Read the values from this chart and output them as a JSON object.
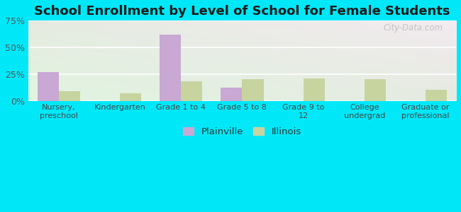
{
  "title": "School Enrollment by Level of School for Female Students",
  "categories": [
    "Nursery,\npreschool",
    "Kindergarten",
    "Grade 1 to 4",
    "Grade 5 to 8",
    "Grade 9 to\n12",
    "College\nundergrad",
    "Graduate or\nprofessional"
  ],
  "plainville": [
    27,
    0,
    62,
    12,
    0,
    0,
    0
  ],
  "illinois": [
    9,
    7,
    18,
    20,
    21,
    20,
    10
  ],
  "plainville_color": "#c9a8d4",
  "illinois_color": "#c8d4a0",
  "background_outer": "#00e8f8",
  "ylim": [
    0,
    75
  ],
  "yticks": [
    0,
    25,
    50,
    75
  ],
  "ytick_labels": [
    "0%",
    "25%",
    "50%",
    "75%"
  ],
  "title_fontsize": 13,
  "legend_labels": [
    "Plainville",
    "Illinois"
  ],
  "bar_width": 0.35,
  "watermark": "City-Data.com"
}
